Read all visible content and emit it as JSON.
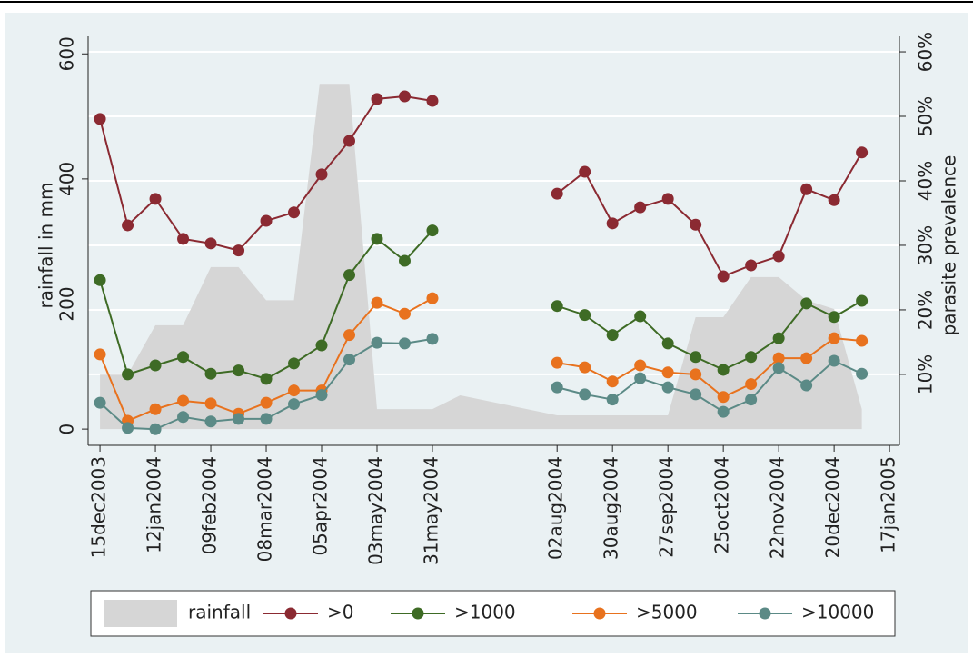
{
  "chart_data": {
    "type": "line",
    "y_label": "rainfall in mm",
    "y2_label": "parasite prevalence",
    "x": [
      "2003-12-15",
      "2003-12-29",
      "2004-01-12",
      "2004-01-26",
      "2004-02-09",
      "2004-02-23",
      "2004-03-08",
      "2004-03-22",
      "2004-04-05",
      "2004-04-19",
      "2004-05-03",
      "2004-05-17",
      "2004-05-31",
      "2004-07-01",
      "2004-08-02",
      "2004-08-16",
      "2004-08-30",
      "2004-09-13",
      "2004-09-27",
      "2004-10-11",
      "2004-10-25",
      "2004-11-08",
      "2004-11-22",
      "2004-12-06",
      "2004-12-20",
      "2005-01-03"
    ],
    "series": [
      {
        "name": "rainfall",
        "type": "area",
        "color": "#d6d6d6",
        "axis": "y",
        "x": [
          "2003-12-15",
          "2003-12-29",
          "2004-01-12",
          "2004-01-26",
          "2004-02-09",
          "2004-02-23",
          "2004-03-08",
          "2004-03-22",
          "2004-04-04",
          "2004-04-19",
          "2004-05-03",
          "2004-05-17",
          "2004-05-31",
          "2004-06-14",
          "2004-08-02",
          "2004-08-16",
          "2004-08-30",
          "2004-09-13",
          "2004-09-27",
          "2004-10-11",
          "2004-10-25",
          "2004-11-08",
          "2004-11-22",
          "2004-12-06",
          "2004-12-20",
          "2005-01-03"
        ],
        "values": [
          87,
          87,
          166,
          166,
          259,
          259,
          206,
          206,
          552,
          552,
          32,
          32,
          32,
          54,
          22,
          22,
          22,
          22,
          22,
          179,
          179,
          243,
          243,
          206,
          192,
          32
        ]
      },
      {
        "name": ">0",
        "color": "#8b2a32",
        "axis": "y2",
        "values": [
          49.6,
          33.1,
          37.2,
          31.0,
          30.3,
          29.2,
          33.8,
          35.1,
          41.0,
          46.2,
          52.7,
          53.1,
          52.4,
          null,
          38.0,
          41.4,
          33.4,
          35.9,
          37.2,
          33.2,
          25.2,
          26.9,
          28.3,
          38.7,
          37.0,
          44.4
        ]
      },
      {
        "name": ">1000",
        "color": "#3e6b25",
        "axis": "y2",
        "values": [
          24.6,
          10.0,
          11.4,
          12.7,
          10.1,
          10.6,
          9.3,
          11.7,
          14.5,
          25.4,
          31.0,
          27.6,
          32.3,
          null,
          20.6,
          19.2,
          16.1,
          19.0,
          14.8,
          12.7,
          10.7,
          12.7,
          15.6,
          21.0,
          18.9,
          21.4
        ]
      },
      {
        "name": ">5000",
        "color": "#e8721e",
        "axis": "y2",
        "values": [
          13.1,
          2.8,
          4.6,
          5.9,
          5.5,
          3.9,
          5.6,
          7.5,
          7.5,
          16.1,
          21.1,
          19.4,
          21.8,
          null,
          11.8,
          11.1,
          8.9,
          11.4,
          10.3,
          10.0,
          6.5,
          8.5,
          12.5,
          12.5,
          15.6,
          15.2
        ]
      },
      {
        "name": ">10000",
        "color": "#5b8a86",
        "axis": "y2",
        "values": [
          5.6,
          1.7,
          1.5,
          3.4,
          2.7,
          3.1,
          3.1,
          5.4,
          6.8,
          12.3,
          14.9,
          14.8,
          15.5,
          null,
          8.0,
          6.9,
          6.1,
          9.4,
          8.0,
          6.9,
          4.2,
          6.1,
          11.0,
          8.3,
          12.1,
          10.1
        ]
      }
    ],
    "xlim": [
      "2003-12-09",
      "2005-01-22"
    ],
    "xticks": [
      {
        "value": "2003-12-15",
        "label": "15dec2003"
      },
      {
        "value": "2004-01-12",
        "label": "12jan2004"
      },
      {
        "value": "2004-02-09",
        "label": "09feb2004"
      },
      {
        "value": "2004-03-08",
        "label": "08mar2004"
      },
      {
        "value": "2004-04-05",
        "label": "05apr2004"
      },
      {
        "value": "2004-05-03",
        "label": "03may2004"
      },
      {
        "value": "2004-05-31",
        "label": "31may2004"
      },
      {
        "value": "2004-08-02",
        "label": "02aug2004"
      },
      {
        "value": "2004-08-30",
        "label": "30aug2004"
      },
      {
        "value": "2004-09-27",
        "label": "27sep2004"
      },
      {
        "value": "2004-10-25",
        "label": "25oct2004"
      },
      {
        "value": "2004-11-22",
        "label": "22nov2004"
      },
      {
        "value": "2004-12-20",
        "label": "20dec2004"
      },
      {
        "value": "2005-01-17",
        "label": "17jan2005"
      }
    ],
    "ylim": [
      -26,
      628
    ],
    "yticks": [
      0,
      200,
      400,
      600
    ],
    "y2lim": [
      -1,
      62.4
    ],
    "y2ticks": [
      {
        "value": 10,
        "label": "10%"
      },
      {
        "value": 20,
        "label": "20%"
      },
      {
        "value": 30,
        "label": "30%"
      },
      {
        "value": 40,
        "label": "40%"
      },
      {
        "value": 50,
        "label": "50%"
      },
      {
        "value": 60,
        "label": "60%"
      }
    ],
    "grid": true,
    "legend": "bottom"
  }
}
